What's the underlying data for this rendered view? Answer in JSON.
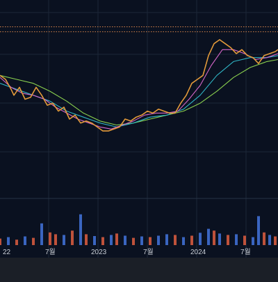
{
  "chart_data": {
    "type": "line",
    "title": "",
    "xlabel": "",
    "ylabel": "",
    "x_ticks": [
      "22",
      "7월",
      "2023",
      "7월",
      "2024",
      "7월"
    ],
    "grid": true,
    "legend": "none",
    "colors": {
      "background": "#0a1120",
      "bottom_band": "#1b1f27",
      "grid": "#1c2638",
      "separator": "#273246",
      "axis_text": "#c9ced6",
      "price": "#e39a3a",
      "ma_short": "#d466c8",
      "ma_mid": "#2fb4c4",
      "ma_long": "#8bd14f",
      "ref_line": "#d9854a",
      "volume_up": "#3f6fd1",
      "volume_down": "#d35a3e"
    },
    "x_range": [
      0,
      100
    ],
    "y_range": [
      0,
      100
    ],
    "ref_levels": [
      86.5,
      84.0
    ],
    "series": [
      {
        "role": "price",
        "values": [
          [
            0,
            62
          ],
          [
            2,
            60
          ],
          [
            4,
            55
          ],
          [
            5,
            52
          ],
          [
            7,
            56
          ],
          [
            9,
            50
          ],
          [
            11,
            51
          ],
          [
            13,
            56
          ],
          [
            15,
            52
          ],
          [
            17,
            47
          ],
          [
            19,
            48
          ],
          [
            21,
            44
          ],
          [
            23,
            46
          ],
          [
            25,
            40
          ],
          [
            27,
            42
          ],
          [
            29,
            38
          ],
          [
            31,
            39
          ],
          [
            33,
            38
          ],
          [
            35,
            36
          ],
          [
            37,
            34
          ],
          [
            39,
            34
          ],
          [
            41,
            35
          ],
          [
            43,
            36
          ],
          [
            45,
            40
          ],
          [
            47,
            39
          ],
          [
            49,
            41
          ],
          [
            51,
            42
          ],
          [
            53,
            44
          ],
          [
            55,
            43
          ],
          [
            57,
            45
          ],
          [
            59,
            44
          ],
          [
            61,
            43
          ],
          [
            63,
            43
          ],
          [
            65,
            48
          ],
          [
            67,
            52
          ],
          [
            69,
            58
          ],
          [
            71,
            60
          ],
          [
            73,
            62
          ],
          [
            75,
            72
          ],
          [
            77,
            78
          ],
          [
            79,
            80
          ],
          [
            81,
            78
          ],
          [
            83,
            76
          ],
          [
            85,
            73
          ],
          [
            87,
            75
          ],
          [
            89,
            72
          ],
          [
            91,
            71
          ],
          [
            93,
            68
          ],
          [
            95,
            72
          ],
          [
            97,
            73
          ],
          [
            99,
            74
          ],
          [
            100,
            75
          ]
        ]
      },
      {
        "role": "ma_short",
        "values": [
          [
            0,
            61
          ],
          [
            4,
            56
          ],
          [
            8,
            53
          ],
          [
            12,
            52
          ],
          [
            16,
            50
          ],
          [
            20,
            46
          ],
          [
            24,
            43
          ],
          [
            28,
            40
          ],
          [
            32,
            38
          ],
          [
            36,
            36
          ],
          [
            40,
            35
          ],
          [
            44,
            37
          ],
          [
            48,
            39
          ],
          [
            52,
            42
          ],
          [
            56,
            43
          ],
          [
            60,
            43
          ],
          [
            64,
            44
          ],
          [
            68,
            50
          ],
          [
            72,
            57
          ],
          [
            76,
            67
          ],
          [
            80,
            75
          ],
          [
            84,
            75
          ],
          [
            88,
            73
          ],
          [
            92,
            70
          ],
          [
            96,
            71
          ],
          [
            100,
            73
          ]
        ]
      },
      {
        "role": "ma_mid",
        "values": [
          [
            0,
            58
          ],
          [
            6,
            55
          ],
          [
            12,
            52
          ],
          [
            18,
            49
          ],
          [
            24,
            44
          ],
          [
            30,
            41
          ],
          [
            36,
            38
          ],
          [
            42,
            36
          ],
          [
            48,
            38
          ],
          [
            54,
            41
          ],
          [
            60,
            42
          ],
          [
            66,
            45
          ],
          [
            72,
            52
          ],
          [
            78,
            62
          ],
          [
            84,
            69
          ],
          [
            90,
            71
          ],
          [
            96,
            71
          ],
          [
            100,
            72
          ]
        ]
      },
      {
        "role": "ma_long",
        "values": [
          [
            0,
            62
          ],
          [
            6,
            60
          ],
          [
            12,
            58
          ],
          [
            18,
            54
          ],
          [
            24,
            49
          ],
          [
            30,
            43
          ],
          [
            36,
            39
          ],
          [
            42,
            37
          ],
          [
            48,
            38
          ],
          [
            54,
            40
          ],
          [
            60,
            42
          ],
          [
            66,
            44
          ],
          [
            72,
            48
          ],
          [
            78,
            54
          ],
          [
            84,
            61
          ],
          [
            90,
            66
          ],
          [
            96,
            69
          ],
          [
            100,
            70
          ]
        ]
      }
    ],
    "volume": {
      "max": 100,
      "values": [
        [
          0,
          18
        ],
        [
          3,
          22
        ],
        [
          6,
          15
        ],
        [
          9,
          24
        ],
        [
          12,
          20
        ],
        [
          15,
          60
        ],
        [
          18,
          35
        ],
        [
          20,
          30
        ],
        [
          23,
          28
        ],
        [
          26,
          40
        ],
        [
          29,
          85
        ],
        [
          31,
          30
        ],
        [
          34,
          25
        ],
        [
          37,
          22
        ],
        [
          40,
          28
        ],
        [
          42,
          32
        ],
        [
          45,
          26
        ],
        [
          48,
          20
        ],
        [
          51,
          24
        ],
        [
          54,
          22
        ],
        [
          57,
          26
        ],
        [
          60,
          30
        ],
        [
          63,
          28
        ],
        [
          66,
          22
        ],
        [
          69,
          26
        ],
        [
          72,
          34
        ],
        [
          75,
          45
        ],
        [
          77,
          40
        ],
        [
          79,
          32
        ],
        [
          82,
          28
        ],
        [
          85,
          30
        ],
        [
          88,
          26
        ],
        [
          91,
          22
        ],
        [
          93,
          80
        ],
        [
          95,
          35
        ],
        [
          97,
          28
        ],
        [
          99,
          24
        ]
      ],
      "direction": [
        "d",
        "u",
        "d",
        "u",
        "d",
        "u",
        "d",
        "d",
        "u",
        "d",
        "u",
        "d",
        "u",
        "d",
        "u",
        "d",
        "u",
        "d",
        "u",
        "d",
        "u",
        "u",
        "d",
        "u",
        "d",
        "u",
        "u",
        "d",
        "u",
        "d",
        "u",
        "d",
        "u",
        "u",
        "d",
        "u",
        "d"
      ]
    }
  }
}
